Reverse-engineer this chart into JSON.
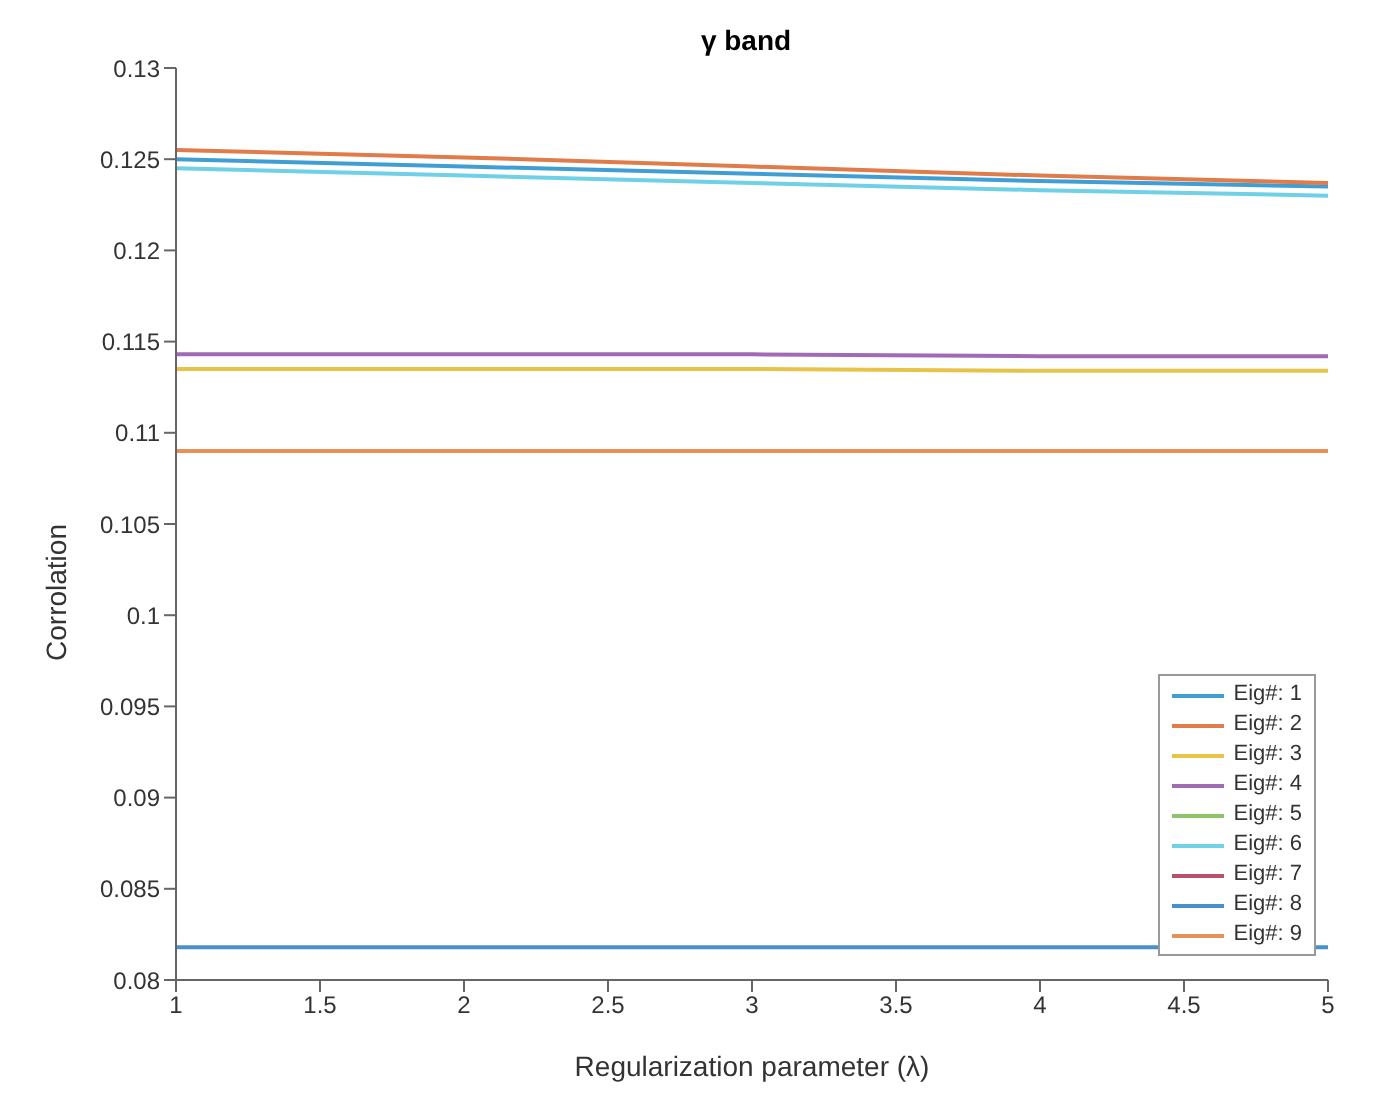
{
  "chart_data": {
    "type": "line",
    "title": "γ band",
    "xlabel": "Regularization parameter (λ)",
    "ylabel": "Corrolation",
    "x": [
      1,
      2,
      3,
      4,
      5
    ],
    "series": [
      {
        "name": "Eig#: 1",
        "color": "#3f9fd4",
        "values": [
          0.125,
          0.1246,
          0.1242,
          0.1238,
          0.1235
        ]
      },
      {
        "name": "Eig#: 2",
        "color": "#e07b4a",
        "values": [
          0.1255,
          0.1251,
          0.1246,
          0.1241,
          0.1237
        ]
      },
      {
        "name": "Eig#: 3",
        "color": "#e8c34a",
        "values": [
          0.1135,
          0.1135,
          0.1135,
          0.1134,
          0.1134
        ]
      },
      {
        "name": "Eig#: 4",
        "color": "#a06ab4",
        "values": [
          0.1143,
          0.1143,
          0.1143,
          0.1142,
          0.1142
        ]
      },
      {
        "name": "Eig#: 5",
        "color": "#8cc46a",
        "values": [
          null,
          null,
          null,
          null,
          null
        ]
      },
      {
        "name": "Eig#: 6",
        "color": "#6fd0e8",
        "values": [
          0.1245,
          0.1241,
          0.1237,
          0.1233,
          0.123
        ]
      },
      {
        "name": "Eig#: 7",
        "color": "#b8506a",
        "values": [
          null,
          null,
          null,
          null,
          null
        ]
      },
      {
        "name": "Eig#: 8",
        "color": "#4a90c8",
        "values": [
          0.0818,
          0.0818,
          0.0818,
          0.0818,
          0.0818
        ]
      },
      {
        "name": "Eig#: 9",
        "color": "#e8905a",
        "values": [
          0.109,
          0.109,
          0.109,
          0.109,
          0.109
        ]
      }
    ],
    "xlim": [
      1,
      5
    ],
    "xticks": [
      1,
      1.5,
      2,
      2.5,
      3,
      3.5,
      4,
      4.5,
      5
    ],
    "ylim": [
      0.08,
      0.13
    ],
    "yticks": [
      0.08,
      0.085,
      0.09,
      0.095,
      0.1,
      0.105,
      0.11,
      0.115,
      0.12,
      0.125,
      0.13
    ],
    "grid": false,
    "legend": "bottom right",
    "marker": "none",
    "line_style": "solid"
  }
}
